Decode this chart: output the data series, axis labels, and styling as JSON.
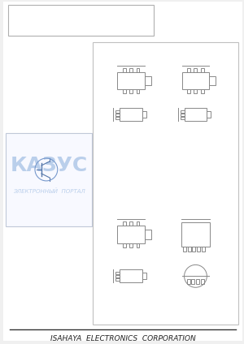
{
  "bg_color": "#f0f0f0",
  "page_bg": "#ffffff",
  "header_bg": "#ffffff",
  "footer_text": "ISAHAYA  ELECTRONICS  CORPORATION",
  "footer_fontsize": 6.5,
  "watermark_text_top": "КАЗУС",
  "watermark_text_bottom": "ЭЛЕКТРОННЫЙ  ПОРТАЛ",
  "watermark_color": "#b0c8e8",
  "panel_bg": "#ffffff",
  "panel_border": "#cccccc",
  "diagram_color": "#888888",
  "diagram_linewidth": 0.7
}
